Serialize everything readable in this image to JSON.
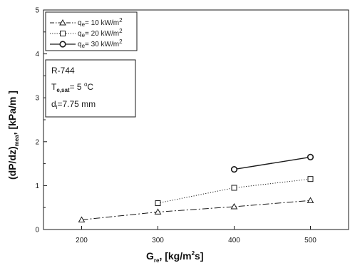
{
  "chart_data": {
    "type": "line",
    "x": [
      200,
      300,
      400,
      500
    ],
    "xlim": [
      150,
      550
    ],
    "ylim": [
      0,
      5
    ],
    "xticks": [
      200,
      300,
      400,
      500
    ],
    "yticks": [
      0,
      1,
      2,
      3,
      4,
      5
    ],
    "xlabel": {
      "main": "G",
      "sub": "re",
      "tail_pre": ", [kg/m",
      "sup": "2",
      "tail_post": "s]"
    },
    "ylabel": {
      "main": "(dP/dz)",
      "sub": "mea",
      "tail": ", [kPa/m ]"
    },
    "legend_position": "top-left",
    "grid": false,
    "series": [
      {
        "name_prefix": "q",
        "name_sub": "e",
        "name_value": "= 10 kW/m",
        "name_sup": "2",
        "marker": "triangle",
        "line_style": "dash-dot",
        "x": [
          200,
          300,
          400,
          500
        ],
        "values": [
          0.22,
          0.4,
          0.52,
          0.66
        ]
      },
      {
        "name_prefix": "q",
        "name_sub": "e",
        "name_value": "= 20 kW/m",
        "name_sup": "2",
        "marker": "square",
        "line_style": "dotted",
        "x": [
          300,
          400,
          500
        ],
        "values": [
          0.6,
          0.95,
          1.15
        ]
      },
      {
        "name_prefix": "q",
        "name_sub": "e",
        "name_value": "= 30 kW/m",
        "name_sup": "2",
        "marker": "circle",
        "line_style": "solid",
        "x": [
          400,
          500
        ],
        "values": [
          1.37,
          1.65
        ]
      }
    ],
    "annotation": {
      "fluid": "R-744",
      "temp_main": "T",
      "temp_sub": "e,sat",
      "temp_value": "= 5 ",
      "temp_sup": "o",
      "temp_unit": "C",
      "diam_main": "d",
      "diam_sub": "i",
      "diam_value": "=7.75 mm"
    },
    "colors": {
      "ink": "#1a1a1a",
      "background": "#ffffff"
    }
  }
}
